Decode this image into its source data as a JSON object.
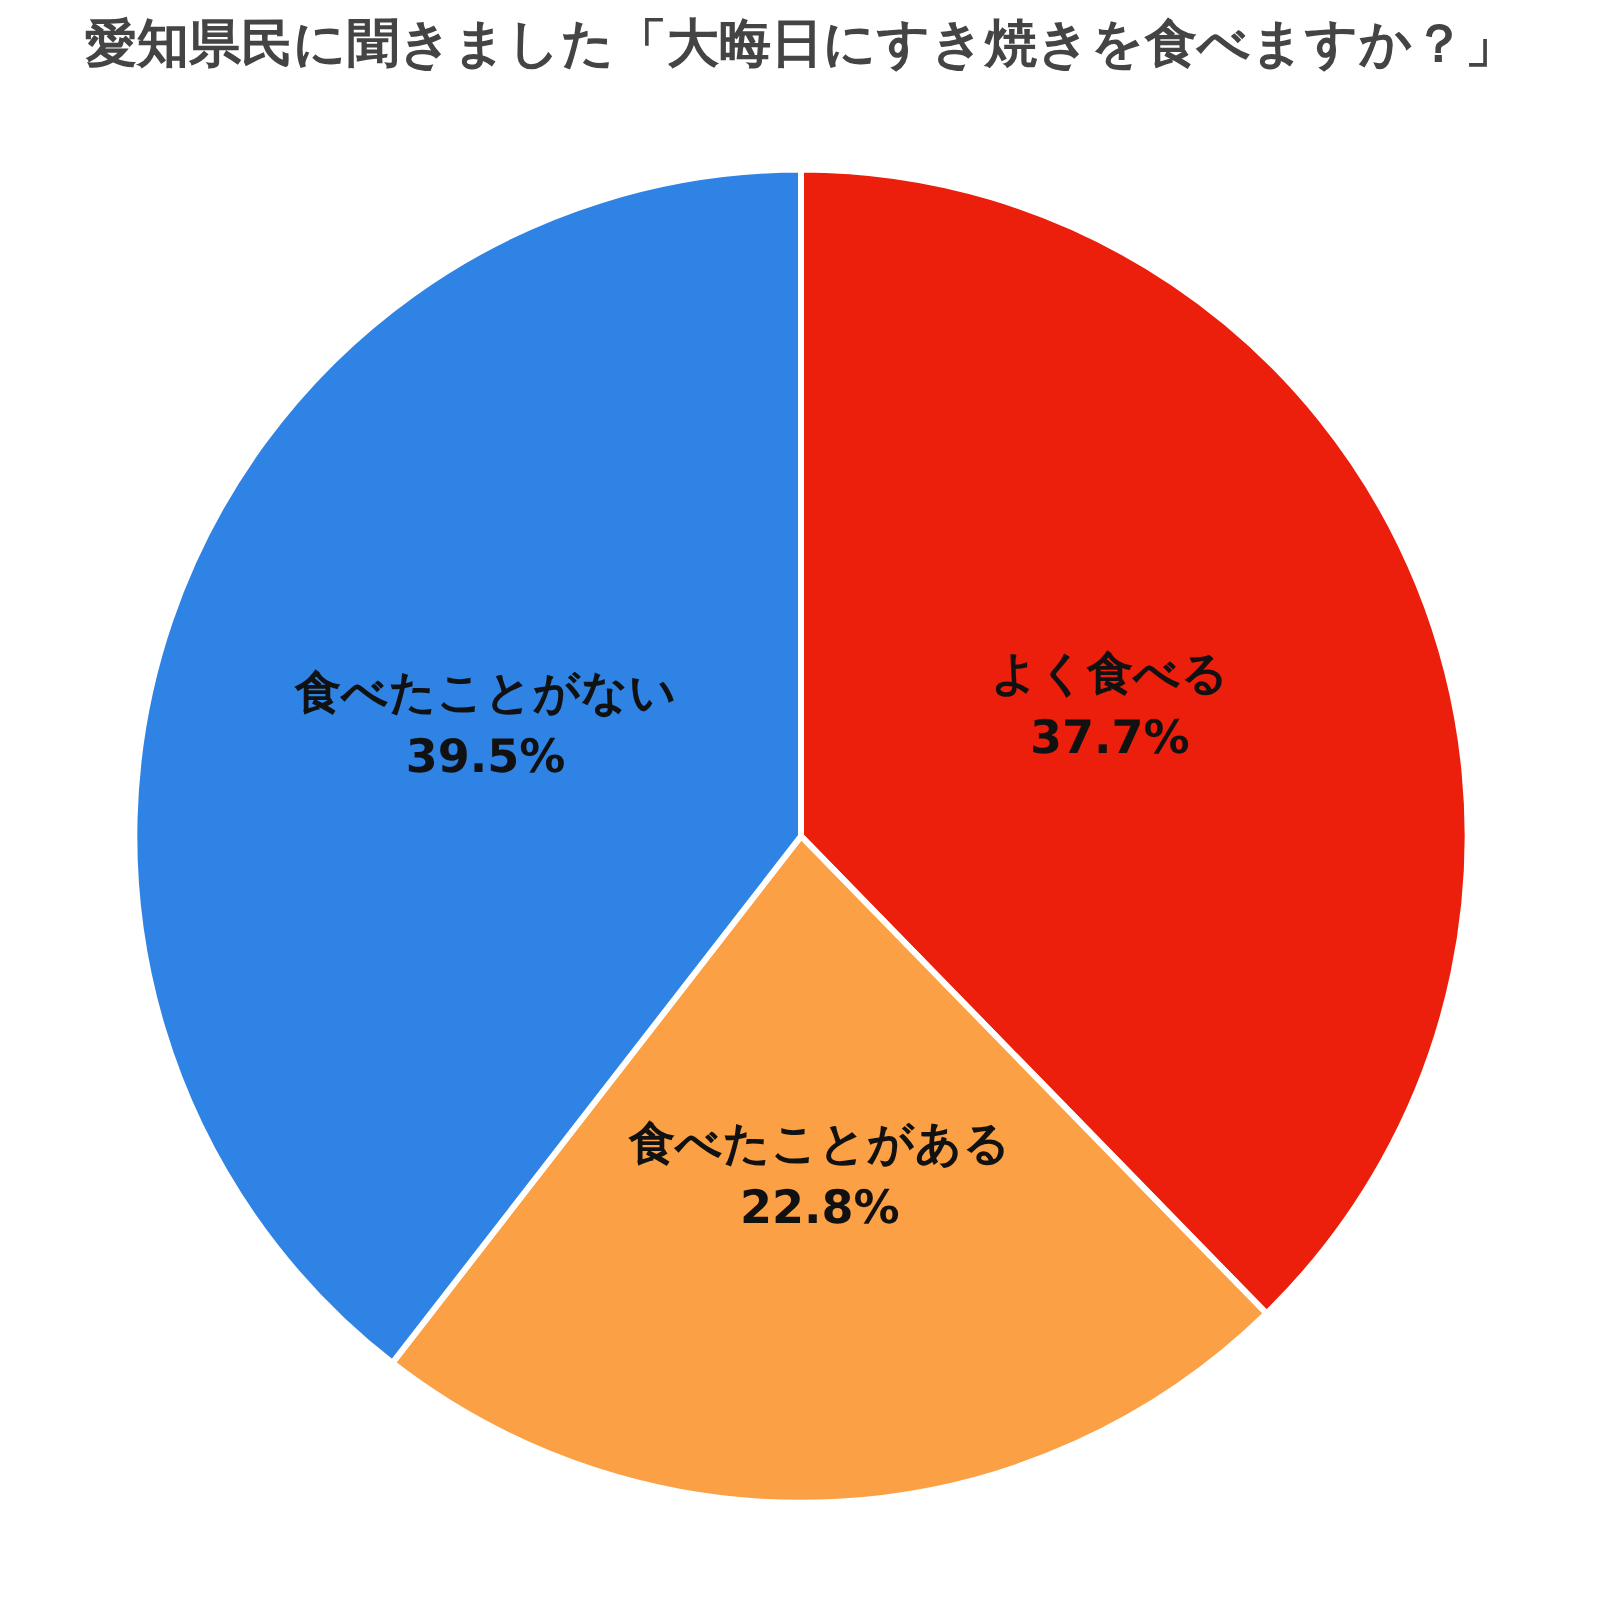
{
  "chart_data": {
    "type": "pie",
    "title": "愛知県民に聞きました「大晦日にすき焼きを食べますか？」",
    "categories": [
      "よく食べる",
      "食べたことがある",
      "食べたことがない"
    ],
    "values": [
      37.7,
      22.8,
      39.5
    ],
    "colors": [
      "#eb1f0b",
      "#fba044",
      "#2f83e4"
    ],
    "value_labels": [
      "37.7%",
      "22.8%",
      "39.5%"
    ],
    "legend": false
  }
}
